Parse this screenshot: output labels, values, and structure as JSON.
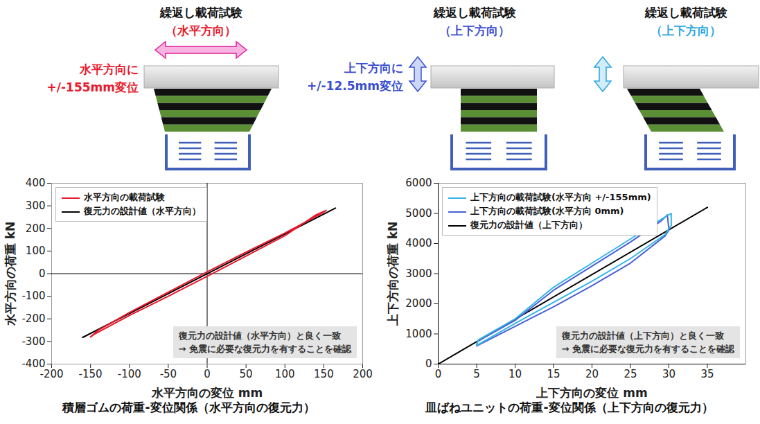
{
  "diagrams": [
    {
      "title": "繰返し載荷試験",
      "subtitle": "（水平方向）",
      "color": "#e8192c",
      "note": [
        "水平方向に",
        "+/-155mm変位"
      ]
    },
    {
      "title": "繰返し載荷試験",
      "subtitle": "（上下方向）",
      "color": "#3b4fd0",
      "note": [
        "上下方向に",
        "+/-12.5mm変位"
      ]
    },
    {
      "title": "繰返し載荷試験",
      "subtitle": "（上下方向）",
      "color": "#2aa6e0"
    }
  ],
  "chart_data": [
    {
      "type": "line",
      "title": "積層ゴムの荷重-変位関係（水平方向の復元力）",
      "x_label": "水平方向の変位 mm",
      "y_label": "水平方向の荷重 kN",
      "xlim": [
        -200,
        200
      ],
      "xticks": [
        -200,
        -150,
        -100,
        -50,
        0,
        50,
        100,
        150,
        200
      ],
      "ylim": [
        -400,
        400
      ],
      "yticks": [
        -400,
        -300,
        -200,
        -100,
        0,
        100,
        200,
        300,
        400
      ],
      "grid": false,
      "legend": "top-left",
      "annotations": [
        "復元力の設計値（水平方向）と良く一致",
        "→ 免震に必要な復元力を有することを確認"
      ],
      "series": [
        {
          "name": "水平方向の載荷試験",
          "color": "#e8192c",
          "x": [
            -150,
            -140,
            -100,
            -50,
            0,
            50,
            100,
            150,
            153,
            140,
            100,
            50,
            0,
            -50,
            -100,
            -145,
            -150
          ],
          "values": [
            -280,
            -250,
            -172,
            -82,
            8,
            95,
            180,
            272,
            280,
            260,
            168,
            78,
            -12,
            -100,
            -185,
            -268,
            -280
          ]
        },
        {
          "name": "復元力の設計値（水平方向）",
          "color": "#000000",
          "x": [
            -160,
            165
          ],
          "values": [
            -282,
            290
          ]
        }
      ]
    },
    {
      "type": "line",
      "title": "皿ばねユニットの荷重-変位関係（上下方向の復元力）",
      "x_label": "上下方向の変位 mm",
      "y_label": "上下方向の荷重 kN",
      "xlim": [
        0,
        40
      ],
      "xticks": [
        0,
        5,
        10,
        15,
        20,
        25,
        30,
        35
      ],
      "ylim": [
        0,
        6000
      ],
      "yticks": [
        0,
        1000,
        2000,
        3000,
        4000,
        5000,
        6000
      ],
      "grid": false,
      "legend": "top-left",
      "annotations": [
        "復元力の設計値（上下方向）と良く一致",
        "→ 免震に必要な復元力を有することを確認"
      ],
      "series": [
        {
          "name": "上下方向の載荷試験(水平方向 +/-155mm)",
          "color": "#33b5e8",
          "x": [
            5,
            5.2,
            10,
            15,
            20,
            25,
            29,
            30.3,
            30.3,
            29.5,
            25,
            20,
            15,
            10,
            5
          ],
          "values": [
            620,
            800,
            1500,
            2550,
            3350,
            4150,
            4800,
            5000,
            4600,
            4300,
            3500,
            2750,
            2050,
            1350,
            620
          ]
        },
        {
          "name": "上下方向の載荷試験(水平方向 0mm)",
          "color": "#4a5fd6",
          "x": [
            5,
            5.1,
            10,
            15,
            20,
            25,
            29,
            29.8,
            30,
            29.5,
            25,
            20,
            15,
            10,
            5
          ],
          "values": [
            600,
            750,
            1450,
            2450,
            3250,
            4050,
            4750,
            4950,
            4450,
            4250,
            3350,
            2600,
            1900,
            1250,
            600
          ]
        },
        {
          "name": "復元力の設計値（上下方向）",
          "color": "#000000",
          "x": [
            0,
            35
          ],
          "values": [
            0,
            5200
          ]
        }
      ]
    }
  ]
}
